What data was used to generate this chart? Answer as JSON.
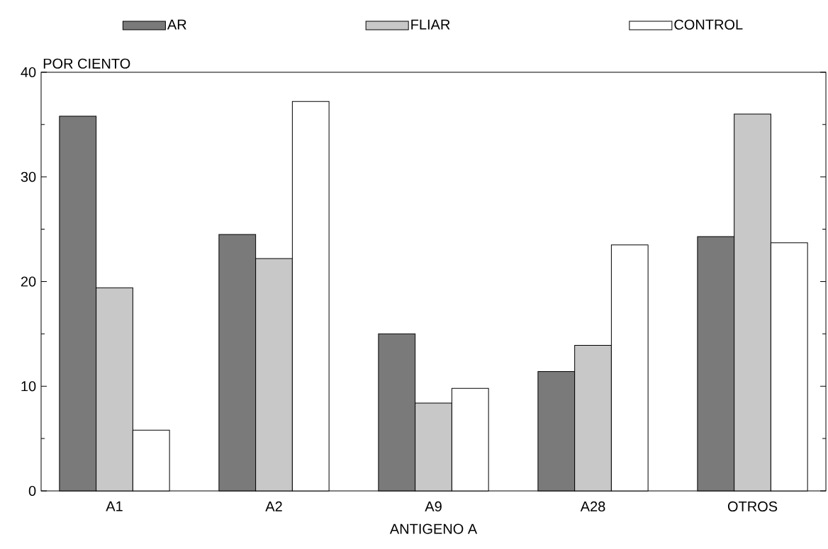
{
  "chart_data": {
    "type": "bar",
    "xlabel": "ANTIGENO A",
    "ylabel": "POR CIENTO",
    "categories": [
      "A1",
      "A2",
      "A9",
      "A28",
      "OTROS"
    ],
    "series": [
      {
        "name": "AR",
        "color": "#7a7a7a",
        "values": [
          35.8,
          24.5,
          15.0,
          11.4,
          24.3
        ]
      },
      {
        "name": "FLIAR",
        "color": "#c8c8c8",
        "values": [
          19.4,
          22.2,
          8.4,
          13.9,
          36.0
        ]
      },
      {
        "name": "CONTROL",
        "color": "#ffffff",
        "values": [
          5.8,
          37.2,
          9.8,
          23.5,
          23.7
        ]
      }
    ],
    "ylim": [
      0,
      40
    ],
    "yticks": [
      0,
      10,
      20,
      30,
      40
    ],
    "grid": false,
    "legend": "top"
  }
}
